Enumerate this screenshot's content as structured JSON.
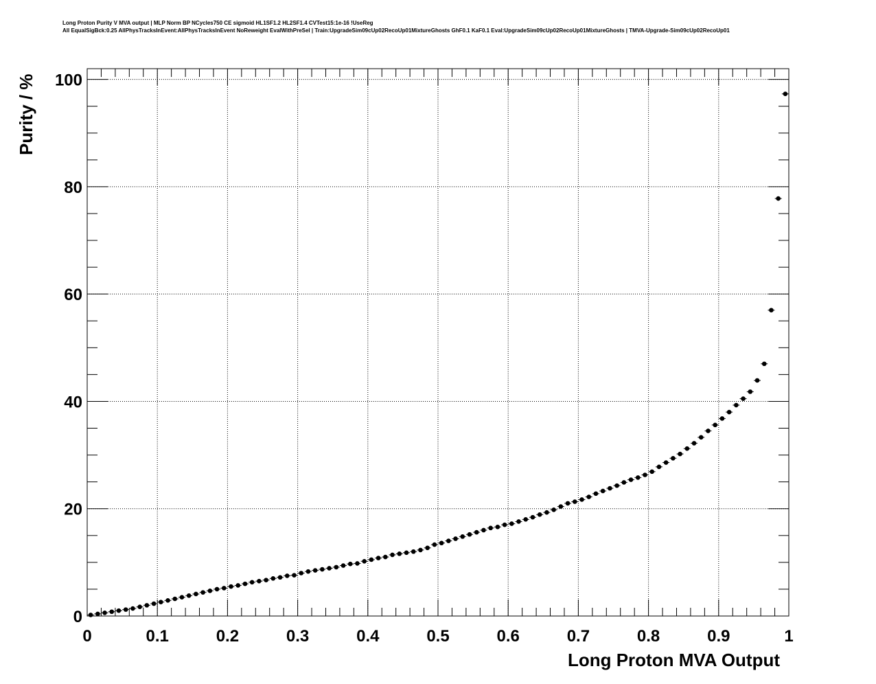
{
  "chart_data": {
    "type": "scatter",
    "title": "Long Proton Purity V MVA output | MLP Norm BP NCycles750 CE sigmoid HL1SF1.2 HL2SF1.4 CVTest15:1e-16 !UseReg",
    "subtitle": "All EqualSigBck:0.25 AllPhysTracksInEvent:AllPhysTracksInEvent NoReweight EvalWithPreSel | Train:UpgradeSim09cUp02RecoUp01MixtureGhosts GhF0.1 KaF0.1 Eval:UpgradeSim09cUp02RecoUp01MixtureGhosts | TMVA-Upgrade-Sim09cUp02RecoUp01",
    "xlabel": "Long Proton MVA Output",
    "ylabel": "Purity / %",
    "xlim": [
      0,
      1
    ],
    "ylim": [
      0,
      102
    ],
    "x_ticks": [
      "0",
      "0.1",
      "0.2",
      "0.3",
      "0.4",
      "0.5",
      "0.6",
      "0.7",
      "0.8",
      "0.9",
      "1"
    ],
    "y_ticks": [
      "0",
      "20",
      "40",
      "60",
      "80",
      "100"
    ],
    "grid": true,
    "marker_color": "#000000",
    "series": [
      {
        "x": [
          0.005,
          0.015,
          0.025,
          0.035,
          0.045,
          0.055,
          0.065,
          0.075,
          0.085,
          0.095,
          0.105,
          0.115,
          0.125,
          0.135,
          0.145,
          0.155,
          0.165,
          0.175,
          0.185,
          0.195,
          0.205,
          0.215,
          0.225,
          0.235,
          0.245,
          0.255,
          0.265,
          0.275,
          0.285,
          0.295,
          0.305,
          0.315,
          0.325,
          0.335,
          0.345,
          0.355,
          0.365,
          0.375,
          0.385,
          0.395,
          0.405,
          0.415,
          0.425,
          0.435,
          0.445,
          0.455,
          0.465,
          0.475,
          0.485,
          0.495,
          0.505,
          0.515,
          0.525,
          0.535,
          0.545,
          0.555,
          0.565,
          0.575,
          0.585,
          0.595,
          0.605,
          0.615,
          0.625,
          0.635,
          0.645,
          0.655,
          0.665,
          0.675,
          0.685,
          0.695,
          0.705,
          0.715,
          0.725,
          0.735,
          0.745,
          0.755,
          0.765,
          0.775,
          0.785,
          0.795,
          0.805,
          0.815,
          0.825,
          0.835,
          0.845,
          0.855,
          0.865,
          0.875,
          0.885,
          0.895,
          0.905,
          0.915,
          0.925,
          0.935,
          0.945,
          0.955,
          0.965,
          0.975,
          0.985,
          0.995
        ],
        "y": [
          0.2,
          0.4,
          0.6,
          0.8,
          1.0,
          1.2,
          1.4,
          1.7,
          2.0,
          2.3,
          2.6,
          2.9,
          3.2,
          3.5,
          3.8,
          4.1,
          4.4,
          4.7,
          5.0,
          5.2,
          5.5,
          5.7,
          6.0,
          6.3,
          6.5,
          6.7,
          7.0,
          7.2,
          7.5,
          7.6,
          8.0,
          8.3,
          8.5,
          8.7,
          8.9,
          9.1,
          9.4,
          9.7,
          9.8,
          10.2,
          10.5,
          10.8,
          11.0,
          11.4,
          11.6,
          11.8,
          12.0,
          12.3,
          12.7,
          13.3,
          13.6,
          14.0,
          14.4,
          14.8,
          15.2,
          15.6,
          16.0,
          16.4,
          16.6,
          17.0,
          17.2,
          17.6,
          18.0,
          18.4,
          18.9,
          19.3,
          19.8,
          20.4,
          21.0,
          21.3,
          21.7,
          22.2,
          22.8,
          23.3,
          23.8,
          24.3,
          24.9,
          25.4,
          25.8,
          26.3,
          26.9,
          27.8,
          28.6,
          29.4,
          30.2,
          31.2,
          32.2,
          33.3,
          34.5,
          35.6,
          36.8,
          38.0,
          39.3,
          40.5,
          41.8,
          43.9,
          47.0,
          57.0,
          77.8,
          97.3
        ]
      }
    ]
  }
}
